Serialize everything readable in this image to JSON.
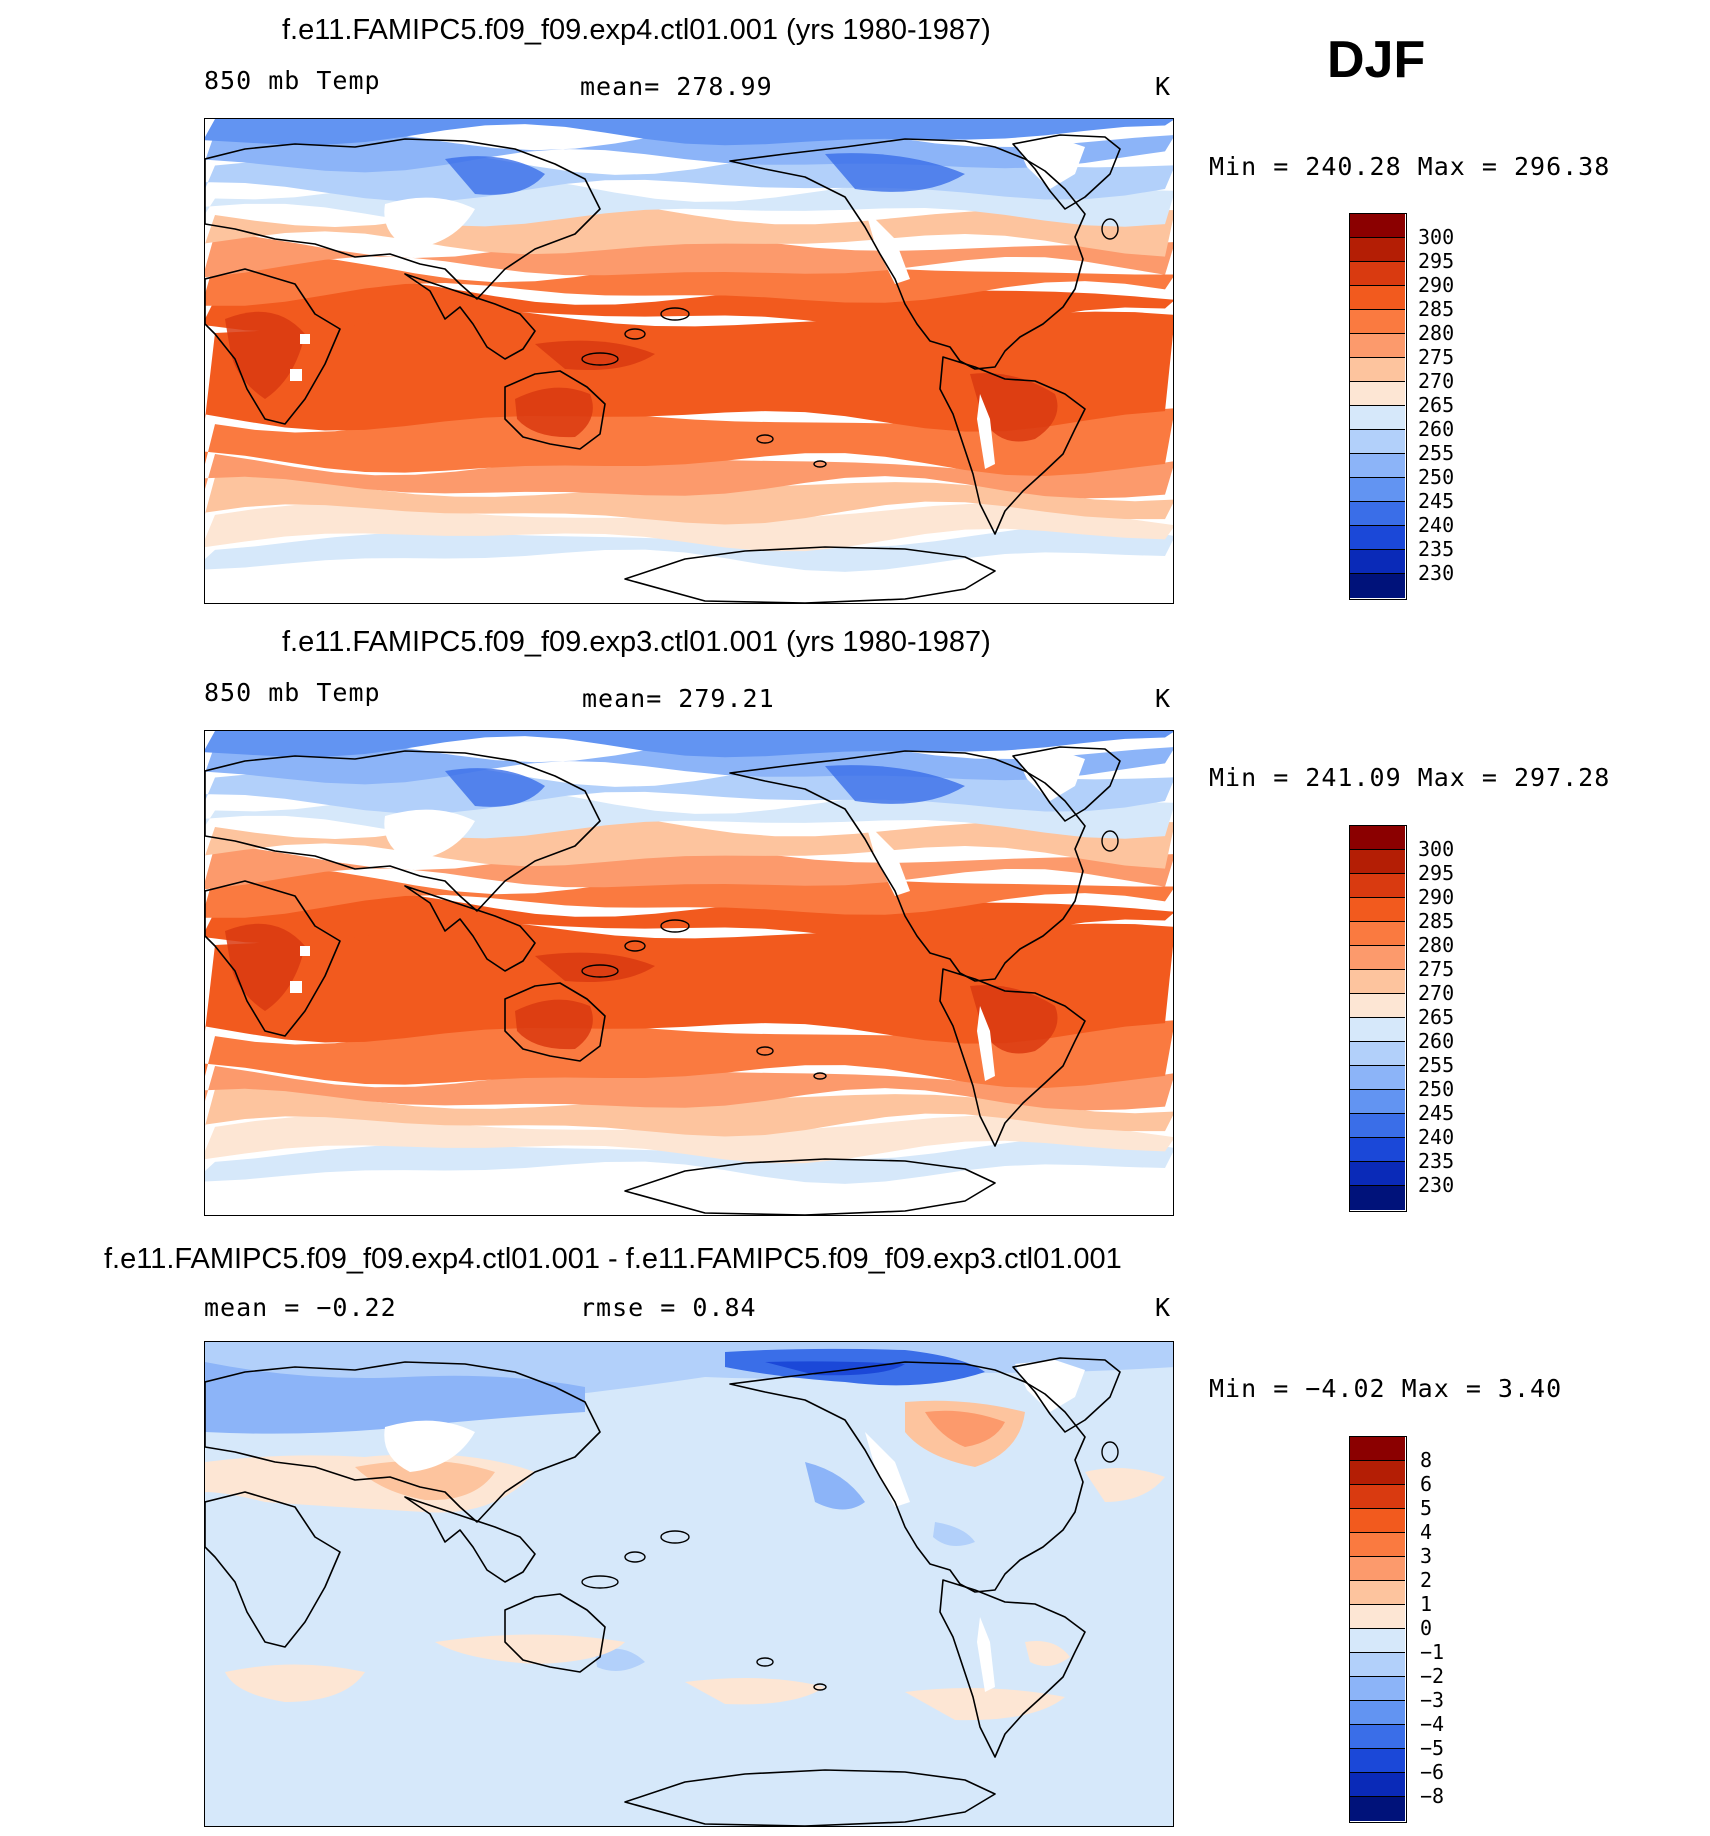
{
  "season": "DJF",
  "panels": [
    {
      "title": "f.e11.FAMIPC5.f09_f09.exp4.ctl01.001 (yrs 1980-1987)",
      "field": "850 mb Temp",
      "stat": "mean=  278.99",
      "unit": "K",
      "minmax": "Min  =  240.28  Max  =  296.38"
    },
    {
      "title": "f.e11.FAMIPC5.f09_f09.exp3.ctl01.001 (yrs 1980-1987)",
      "field": "850 mb Temp",
      "stat": "mean=  279.21",
      "unit": "K",
      "minmax": "Min  =  241.09  Max  =  297.28"
    },
    {
      "title": "f.e11.FAMIPC5.f09_f09.exp4.ctl01.001 - f.e11.FAMIPC5.f09_f09.exp3.ctl01.001",
      "field": "mean  =    −0.22",
      "stat": "rmse  =     0.84",
      "unit": "K",
      "minmax": "Min  =     −4.02  Max  =      3.40"
    }
  ],
  "colorbars": {
    "temp_labels": [
      "300",
      "295",
      "290",
      "285",
      "280",
      "275",
      "270",
      "265",
      "260",
      "255",
      "250",
      "245",
      "240",
      "235",
      "230"
    ],
    "temp_colors": [
      "#8b0000",
      "#b41e05",
      "#d93a10",
      "#f25a1e",
      "#fa7a40",
      "#fc9a6c",
      "#fdc49e",
      "#fde6d4",
      "#d6e8fa",
      "#b2d0fa",
      "#8cb4f8",
      "#6294f2",
      "#3a6ee8",
      "#1b48d8",
      "#0a2ab8",
      "#00127a"
    ],
    "diff_labels": [
      "8",
      "6",
      "5",
      "4",
      "3",
      "2",
      "1",
      "0",
      "−1",
      "−2",
      "−3",
      "−4",
      "−5",
      "−6",
      "−8"
    ],
    "diff_colors": [
      "#8b0000",
      "#b41e05",
      "#d93a10",
      "#f25a1e",
      "#fa7a40",
      "#fc9a6c",
      "#fdc49e",
      "#fde6d4",
      "#d6e8fa",
      "#b2d0fa",
      "#8cb4f8",
      "#6294f2",
      "#3a6ee8",
      "#1b48d8",
      "#0a2ab8",
      "#00127a"
    ]
  },
  "maps": {
    "temp_bands": [
      "#ffffff",
      "#d6e8fa",
      "#fde6d4",
      "#fdc49e",
      "#fc9a6c",
      "#fa7a40",
      "#f25a1e",
      "#f25a1e",
      "#fa7a40",
      "#fc9a6c",
      "#fdc49e",
      "#d6e8fa",
      "#b2d0fa",
      "#8cb4f8",
      "#6294f2"
    ],
    "diff_background": "#d6e8fa"
  }
}
